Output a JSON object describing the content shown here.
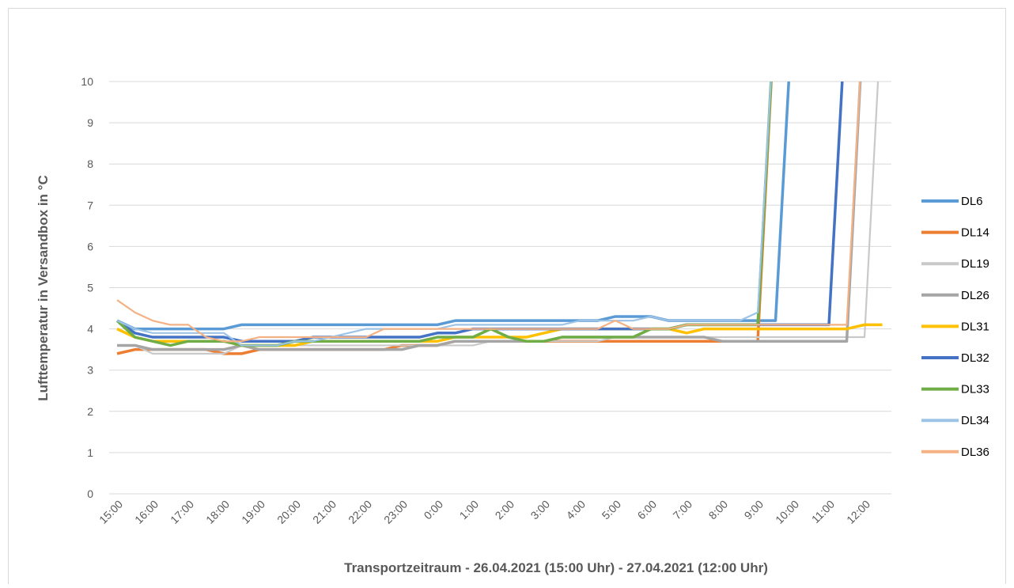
{
  "chart_data": {
    "type": "line",
    "x_label": "Transportzeitraum  - 26.04.2021 (15:00 Uhr) - 27.04.2021 (12:00 Uhr)",
    "y_label": "Lufttemperatur  in Versandbox  in °C",
    "categories": [
      "15:00",
      null,
      "16:00",
      null,
      "17:00",
      null,
      "18:00",
      null,
      "19:00",
      null,
      "20:00",
      null,
      "21:00",
      null,
      "22:00",
      null,
      "23:00",
      null,
      "0:00",
      null,
      "1:00",
      null,
      "2:00",
      null,
      "3:00",
      null,
      "4:00",
      null,
      "5:00",
      null,
      "6:00",
      null,
      "7:00",
      null,
      "8:00",
      null,
      "9:00",
      null,
      "10:00",
      null,
      "11:00",
      null,
      "12:00",
      null
    ],
    "ylim": [
      0,
      10
    ],
    "yticks": [
      0,
      1,
      2,
      3,
      4,
      5,
      6,
      7,
      8,
      9,
      10
    ],
    "grid": true,
    "legend": "right",
    "series": [
      {
        "name": "DL6",
        "color": "#5b9bd5",
        "values": [
          4.2,
          4.0,
          4.0,
          4.0,
          4.0,
          4.0,
          4.0,
          4.1,
          4.1,
          4.1,
          4.1,
          4.1,
          4.1,
          4.1,
          4.1,
          4.1,
          4.1,
          4.1,
          4.1,
          4.2,
          4.2,
          4.2,
          4.2,
          4.2,
          4.2,
          4.2,
          4.2,
          4.2,
          4.3,
          4.3,
          4.3,
          4.2,
          4.2,
          4.2,
          4.2,
          4.2,
          4.2,
          4.2,
          12,
          null,
          null,
          null,
          null,
          null
        ]
      },
      {
        "name": "DL14",
        "color": "#ed7d31",
        "values": [
          3.4,
          3.5,
          3.5,
          3.5,
          3.5,
          3.5,
          3.4,
          3.4,
          3.5,
          3.5,
          3.5,
          3.5,
          3.5,
          3.5,
          3.5,
          3.5,
          3.6,
          3.6,
          3.6,
          3.7,
          3.7,
          3.7,
          3.7,
          3.7,
          3.7,
          3.7,
          3.7,
          3.7,
          3.7,
          3.7,
          3.7,
          3.7,
          3.7,
          3.7,
          3.7,
          3.7,
          3.7,
          12,
          null,
          null,
          null,
          null,
          null,
          null
        ]
      },
      {
        "name": "DL19",
        "color": "#c9c9c9",
        "values": [
          3.6,
          3.6,
          3.4,
          3.4,
          3.4,
          3.4,
          3.4,
          3.6,
          3.6,
          3.6,
          3.6,
          3.6,
          3.6,
          3.6,
          3.6,
          3.6,
          3.6,
          3.6,
          3.6,
          3.6,
          3.6,
          3.7,
          3.7,
          3.7,
          3.7,
          3.7,
          3.7,
          3.7,
          3.8,
          3.8,
          3.8,
          3.8,
          3.8,
          3.8,
          3.8,
          3.8,
          3.8,
          3.8,
          3.8,
          3.8,
          3.8,
          3.8,
          3.8,
          12
        ]
      },
      {
        "name": "DL26",
        "color": "#a5a5a5",
        "values": [
          3.6,
          3.6,
          3.5,
          3.5,
          3.5,
          3.5,
          3.5,
          3.6,
          3.5,
          3.5,
          3.5,
          3.5,
          3.5,
          3.5,
          3.5,
          3.5,
          3.5,
          3.6,
          3.6,
          3.7,
          3.7,
          3.7,
          3.7,
          3.7,
          3.7,
          3.8,
          3.8,
          3.8,
          3.8,
          3.8,
          3.8,
          3.8,
          3.8,
          3.8,
          3.7,
          3.7,
          3.7,
          3.7,
          3.7,
          3.7,
          3.7,
          3.7,
          12,
          null
        ]
      },
      {
        "name": "DL31",
        "color": "#ffc000",
        "values": [
          4.0,
          3.8,
          3.7,
          3.7,
          3.7,
          3.7,
          3.7,
          3.6,
          3.6,
          3.6,
          3.6,
          3.7,
          3.7,
          3.7,
          3.7,
          3.7,
          3.7,
          3.7,
          3.7,
          3.8,
          3.8,
          3.8,
          3.8,
          3.8,
          3.9,
          4.0,
          4.0,
          4.0,
          4.0,
          4.0,
          4.0,
          4.0,
          3.9,
          4.0,
          4.0,
          4.0,
          4.0,
          4.0,
          4.0,
          4.0,
          4.0,
          4.0,
          4.1,
          4.1
        ]
      },
      {
        "name": "DL32",
        "color": "#4472c4",
        "values": [
          4.2,
          3.9,
          3.8,
          3.8,
          3.8,
          3.8,
          3.8,
          3.7,
          3.7,
          3.7,
          3.7,
          3.8,
          3.8,
          3.8,
          3.8,
          3.8,
          3.8,
          3.8,
          3.9,
          3.9,
          4.0,
          4.0,
          4.0,
          4.0,
          4.0,
          4.0,
          4.0,
          4.0,
          4.0,
          4.0,
          4.0,
          4.0,
          4.1,
          4.1,
          4.1,
          4.1,
          4.1,
          4.1,
          4.1,
          4.1,
          4.1,
          12,
          null,
          null
        ]
      },
      {
        "name": "DL33",
        "color": "#70ad47",
        "values": [
          4.2,
          3.8,
          3.7,
          3.6,
          3.7,
          3.7,
          3.7,
          3.6,
          3.6,
          3.6,
          3.7,
          3.7,
          3.7,
          3.7,
          3.7,
          3.7,
          3.7,
          3.7,
          3.8,
          3.8,
          3.8,
          4.0,
          3.8,
          3.7,
          3.7,
          3.8,
          3.8,
          3.8,
          3.8,
          3.8,
          4.0,
          4.0,
          4.1,
          4.1,
          4.1,
          4.1,
          4.1,
          12,
          null,
          null,
          null,
          null,
          null,
          null
        ]
      },
      {
        "name": "DL34",
        "color": "#9dc3e6",
        "values": [
          4.2,
          4.0,
          3.9,
          3.9,
          3.9,
          3.9,
          3.9,
          3.6,
          3.6,
          3.6,
          3.7,
          3.7,
          3.8,
          3.9,
          4.0,
          4.0,
          4.0,
          4.0,
          4.0,
          4.1,
          4.1,
          4.1,
          4.1,
          4.1,
          4.1,
          4.1,
          4.2,
          4.2,
          4.2,
          4.2,
          4.3,
          4.2,
          4.2,
          4.2,
          4.2,
          4.2,
          4.4,
          12,
          null,
          null,
          null,
          null,
          null,
          null
        ]
      },
      {
        "name": "DL36",
        "color": "#f4b183",
        "values": [
          4.7,
          4.4,
          4.2,
          4.1,
          4.1,
          3.8,
          3.7,
          3.7,
          3.8,
          3.8,
          3.8,
          3.8,
          3.8,
          3.8,
          3.8,
          4.0,
          4.0,
          4.0,
          4.0,
          4.0,
          4.0,
          4.0,
          4.0,
          4.0,
          4.0,
          4.0,
          4.0,
          4.0,
          4.2,
          4.0,
          4.0,
          4.0,
          4.1,
          4.1,
          4.1,
          4.1,
          4.1,
          4.1,
          4.1,
          4.1,
          4.1,
          4.1,
          12,
          null
        ]
      }
    ]
  }
}
